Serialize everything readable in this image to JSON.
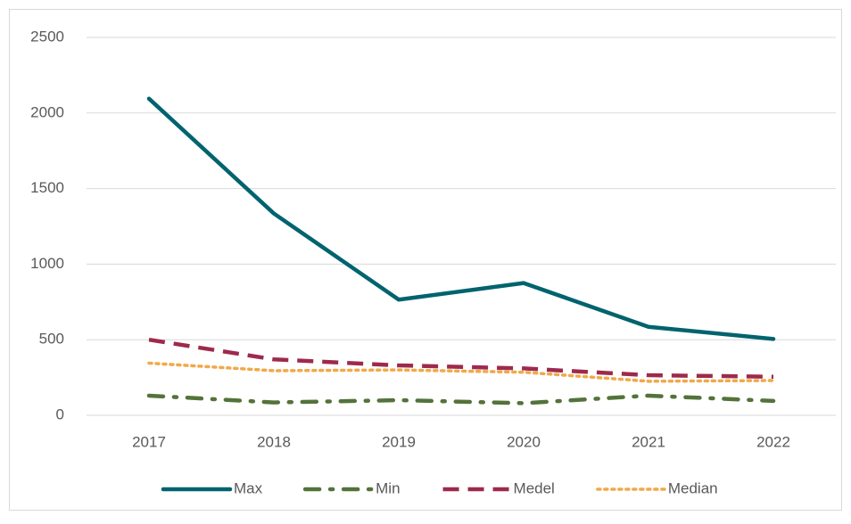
{
  "chart_data": {
    "type": "line",
    "categories": [
      "2017",
      "2018",
      "2019",
      "2020",
      "2021",
      "2022"
    ],
    "series": [
      {
        "name": "Max",
        "color": "#00636e",
        "dash": "solid",
        "values": [
          2095,
          1335,
          765,
          875,
          585,
          505
        ]
      },
      {
        "name": "Min",
        "color": "#53733a",
        "dash": "dashdot",
        "values": [
          130,
          85,
          100,
          80,
          130,
          95
        ]
      },
      {
        "name": "Medel",
        "color": "#9e2a4b",
        "dash": "dash",
        "values": [
          500,
          370,
          330,
          310,
          265,
          255
        ]
      },
      {
        "name": "Median",
        "color": "#f0a94a",
        "dash": "dot",
        "values": [
          345,
          295,
          300,
          285,
          225,
          230
        ]
      }
    ],
    "ylim": [
      0,
      2500
    ],
    "yticks": [
      0,
      500,
      1000,
      1500,
      2000,
      2500
    ],
    "grid": true,
    "legend": "bottom"
  }
}
